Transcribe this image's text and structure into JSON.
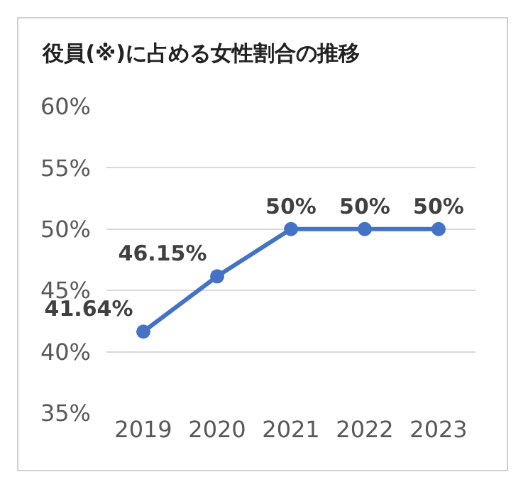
{
  "chart_data": {
    "type": "line",
    "title": "役員(※)に占める女性割合の推移",
    "categories": [
      "2019",
      "2020",
      "2021",
      "2022",
      "2023"
    ],
    "series": [
      {
        "color": "#4472c4",
        "values": [
          41.64,
          46.15,
          50,
          50,
          50
        ],
        "value_labels": [
          "41.64%",
          "46.15%",
          "50%",
          "50%",
          "50%"
        ]
      }
    ],
    "ylim": [
      35,
      60
    ],
    "yticks": [
      {
        "value": 35,
        "label": "35%"
      },
      {
        "value": 40,
        "label": "40%"
      },
      {
        "value": 45,
        "label": "45%"
      },
      {
        "value": 50,
        "label": "50%"
      },
      {
        "value": 55,
        "label": "55%"
      },
      {
        "value": 60,
        "label": "60%"
      }
    ],
    "grid": "y",
    "marker": "circle",
    "line_style": "solid"
  }
}
